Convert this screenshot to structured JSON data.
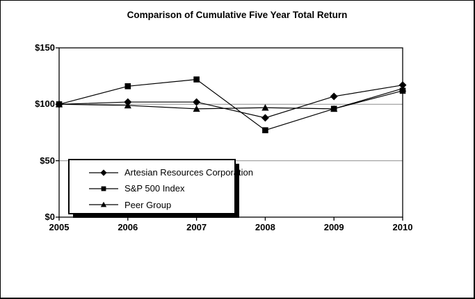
{
  "figure": {
    "title": "Comparison of Cumulative Five Year Total Return"
  },
  "chart_data": {
    "type": "line",
    "title": "Comparison of Cumulative Five Year Total Return",
    "x": [
      2005,
      2006,
      2007,
      2008,
      2009,
      2010
    ],
    "categories": [
      "2005",
      "2006",
      "2007",
      "2008",
      "2009",
      "2010"
    ],
    "series": [
      {
        "name": "Artesian Resources Corporation",
        "marker": "diamond",
        "values": [
          100,
          102,
          102,
          88,
          107,
          117
        ]
      },
      {
        "name": "S&P 500 Index",
        "marker": "square",
        "values": [
          100,
          116,
          122,
          77,
          96,
          112
        ]
      },
      {
        "name": "Peer Group",
        "marker": "triangle",
        "values": [
          100,
          99,
          96,
          97,
          96,
          114
        ]
      }
    ],
    "xlabel": "",
    "ylabel": "",
    "xlim": [
      2005,
      2010
    ],
    "ylim": [
      0,
      150
    ],
    "y_ticks": [
      {
        "value": 0,
        "label": "$0"
      },
      {
        "value": 50,
        "label": "$50"
      },
      {
        "value": 100,
        "label": "$100"
      },
      {
        "value": 150,
        "label": "$150"
      }
    ],
    "y_gridlines": [
      50,
      100
    ],
    "grid": "horizontal",
    "legend_position": "inside-lower-left",
    "colors": {
      "series": "#000000",
      "gridline": "#999999",
      "background": "#ffffff",
      "border": "#000000"
    }
  }
}
